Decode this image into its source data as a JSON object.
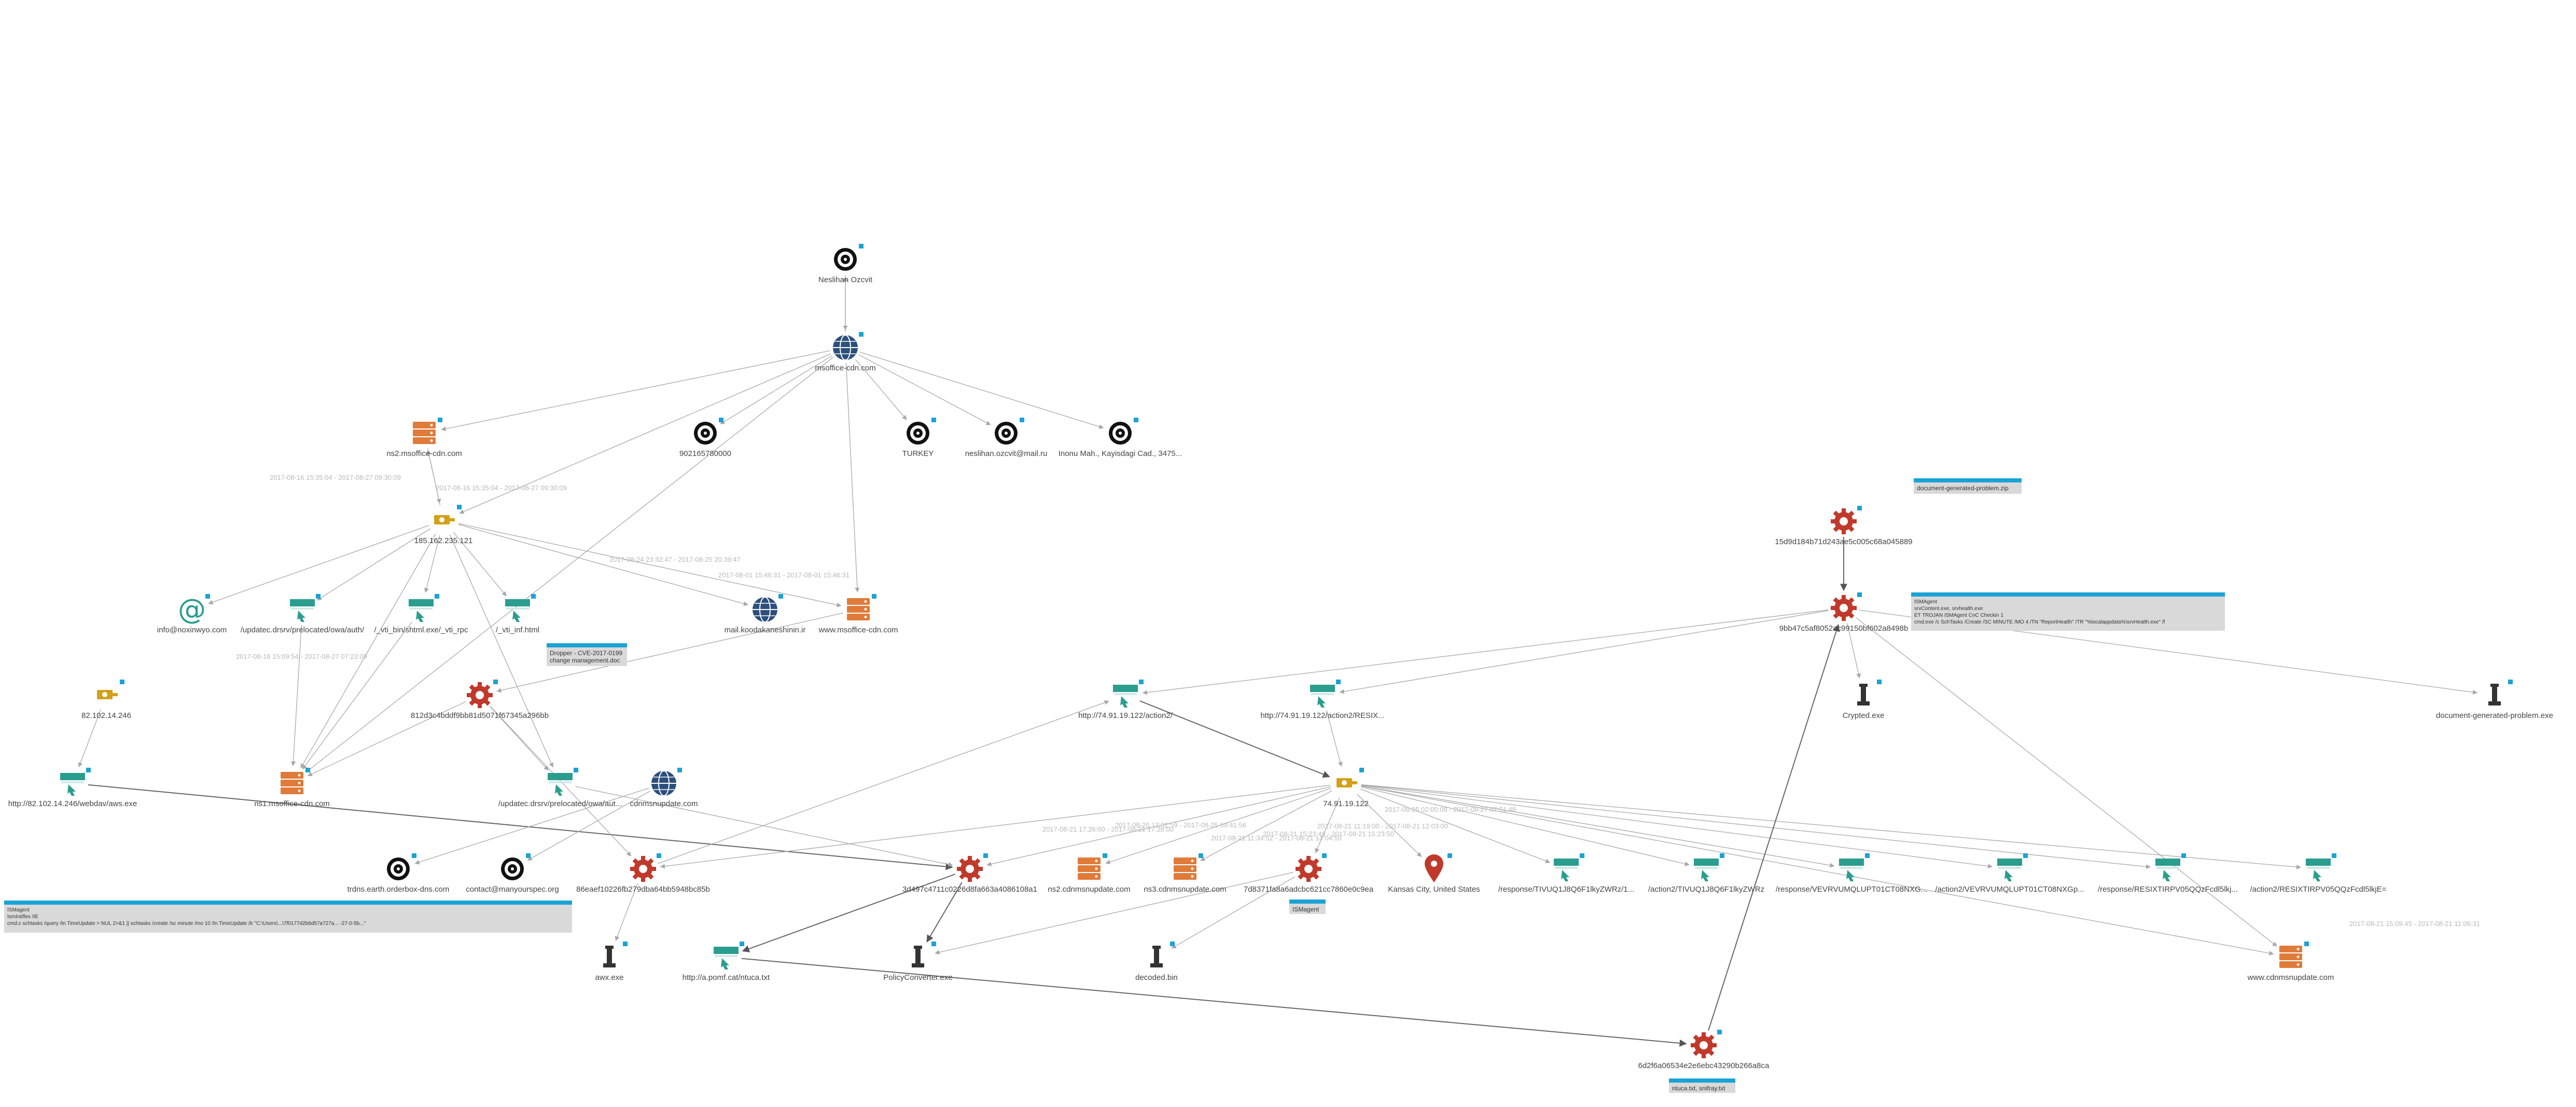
{
  "colors": {
    "accent": "#1aa3d4",
    "process": "#c0392b",
    "server": "#e07b39",
    "url": "#2a9d8f",
    "domain": "#2c4f7c",
    "ip": "#d4a017",
    "edge": "#a8a8a8",
    "email": "#2a9d8f",
    "location": "#c0392b"
  },
  "nodes": {
    "person": "Neslihan Ozcvit",
    "msoffice": "msoffice-cdn.com",
    "ns2": "ns2.msoffice-cdn.com",
    "phone": "902165780000",
    "turkey": "TURKEY",
    "email_mail_ru": "neslihan.ozcvit@mail.ru",
    "address": "Inonu Mah., Kayisdagi Cad., 3475...",
    "ip185": "185.162.235.121",
    "info_email": "info@noxinwyo.com",
    "url_ews": "/updatec.drsrv/prelocated/owa/auth/",
    "url_vti_bin": "/_vti_bin/shtml.exe/_vti_rpc",
    "url_vti_inf": "/_vti_inf.html",
    "mail_koodak": "mail.koodakaneshinin.ir",
    "www_msoffice": "www.msoffice-cdn.com",
    "ip82": "82.102.14.246",
    "hash812": "812d3c4bddf9bb81d5071f67345a296bb",
    "url_82": "http://82.102.14.246/webdav/aws.exe",
    "ns1": "ns1.msoffice-cdn.com",
    "url_updatec2": "/updatec.drsrv/prelocated/owa/aut...",
    "cdnmsnupdate": "cdnmsnupdate.com",
    "hash15d": "15d9d184b71d243ae5c005c68a045889",
    "hash9bb": "9bb47c5af8052ac99150bf602a8498b",
    "url_action2": "http://74.91.19.122/action2/",
    "url_action2_res": "http://74.91.19.122/action2/RESIX...",
    "crypted": "Crypted.exe",
    "doc_problem": "document-generated-problem.exe",
    "ip74": "74.91.19.122",
    "trdns": "trdns.earth.orderbox-dns.com",
    "contact_org": "contact@manyourspec.org",
    "hash86": "86eaef10226fb279dba64bb5948bc85b",
    "hash3d": "3d497c4711c0226d8fa663a4086108a1",
    "ns2_cdnmsn": "ns2.cdnmsnupdate.com",
    "ns3_cdnmsn": "ns3.cdnmsnupdate.com",
    "hash7d8": "7d8371fa8a6adcbc621cc7860e0c9ea",
    "kansas": "Kansas City, United States",
    "resp1": "/response/TIVUQ1J8Q6F1lkyZWRz/1...",
    "action2a": "/action2/TIVUQ1J8Q6F1lkyZWRz",
    "resp2": "/response/VEVRVUMQLUPT01CT08NXG...",
    "action2b": "/action2/VEVRVUMQLUPT01CT08NXGp...",
    "resp3": "/response/RESIXTIRPV05QQzFcdl5lkj...",
    "action2c": "/action2/RESIXTIRPV05QQzFcdl5lkjE=",
    "awx": "awx.exe",
    "url_pomf": "http://a.pomf.cat/ntuca.txt",
    "policy": "PolicyConverter.exe",
    "decoded": "decoded.bin",
    "www_cdnmsn": "www.cdnmsnupdate.com",
    "hash6d2": "6d2f6a06534e2e6ebc43290b266a8ca"
  },
  "edge_labels": {
    "e1": "2017-08-16 15:35:04 - 2017-08-27 09:30:09",
    "e2": "2017-08-16 15:35:04 - 2017-08-27 09:30:09",
    "e3": "2017-08-24 23:32:47 - 2017-08-25 20:39:47",
    "e4": "2017-08-01 15:46:31 - 2017-08-01 15:46:31",
    "e5": "2017-08-16 15:09:54 - 2017-08-27 07:23:09",
    "e6": "2017-08-25 02:00:09 - 2017-08-27 07:51:48",
    "e7": "2017-08-21 17:26:00 - 2017-08-21 17:28:00",
    "e8": "2017-08-20 17:31:59 - 2017-08-25 09:41:56",
    "e9": "2017-08-21 11:34:52 - 2017-08-21 14:04:55",
    "e10": "2017-08-21 11:19:00 - 2017-08-21 12:03:00",
    "e11": "2017-08-21 15:23:49 - 2017-08-21 15:23:50",
    "e12": "2017-08-21 15:09:45 - 2017-08-21 11:06:31"
  },
  "notes": {
    "note_doc": "document-generated-problem.zip",
    "note_oilrig": "ISMAgent\nsrvContent.exe, srvhealth.exe\nET TROJAN ISMAgent CnC Checkin 1\ncmd.exe /c SchTasks /Create /SC MINUTE /MO 4 /TN \"ReportHealth\" /TR \"%localappdata%\\srvHealth.exe\" /f",
    "note_dropper": "Dropper - CVE-2017-0199\nchange management.doc",
    "note_ismagent2": "ISMagent\nIsmInitflex /IE\ncmd.c schtasks /query /tn TimeUpdate > NUL 2>&1 || schtasks /create /sc minute /mo 10 /tn TimeUpdate /tr \"C:\\Users\\...\\7f0177d2b6d57a727a... -27-0-5b...\"",
    "note_ismagent3": "ISMagent",
    "note_ntuca": "ntuca.txt, snifray.txt"
  }
}
